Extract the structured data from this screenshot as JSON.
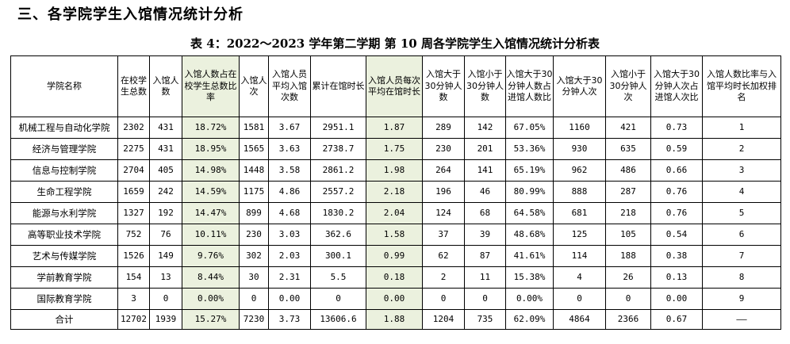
{
  "section_title": "三、各学院学生入馆情况统计分析",
  "table_caption": "表 4：2022～2023 学年第二学期 第 10 周各学院学生入馆情况统计分析表",
  "headers": [
    "学院名称",
    "在校学生总数",
    "入馆人数",
    "入馆人数占在校学生总数比率",
    "入馆人次",
    "入馆人员平均入馆次数",
    "累计在馆时长",
    "入馆人员每次平均在馆时长",
    "入馆大于30分钟人数",
    "入馆小于30分钟人数",
    "入馆大于30分钟人数占进馆人数比",
    "入馆大于30分钟人次",
    "入馆小于30分钟人次",
    "入馆大于30分钟人次占进馆人次比",
    "入馆人数比率与入馆平均时长加权排名"
  ],
  "rows": [
    [
      "机械工程与自动化学院",
      "2302",
      "431",
      "18.72%",
      "1581",
      "3.67",
      "2951.1",
      "1.87",
      "289",
      "142",
      "67.05%",
      "1160",
      "421",
      "0.73",
      "1"
    ],
    [
      "经济与管理学院",
      "2275",
      "431",
      "18.95%",
      "1565",
      "3.63",
      "2738.7",
      "1.75",
      "230",
      "201",
      "53.36%",
      "930",
      "635",
      "0.59",
      "2"
    ],
    [
      "信息与控制学院",
      "2704",
      "405",
      "14.98%",
      "1448",
      "3.58",
      "2861.2",
      "1.98",
      "264",
      "141",
      "65.19%",
      "962",
      "486",
      "0.66",
      "3"
    ],
    [
      "生命工程学院",
      "1659",
      "242",
      "14.59%",
      "1175",
      "4.86",
      "2557.2",
      "2.18",
      "196",
      "46",
      "80.99%",
      "888",
      "287",
      "0.76",
      "4"
    ],
    [
      "能源与水利学院",
      "1327",
      "192",
      "14.47%",
      "899",
      "4.68",
      "1830.2",
      "2.04",
      "124",
      "68",
      "64.58%",
      "681",
      "218",
      "0.76",
      "5"
    ],
    [
      "高等职业技术学院",
      "752",
      "76",
      "10.11%",
      "230",
      "3.03",
      "362.6",
      "1.58",
      "37",
      "39",
      "48.68%",
      "125",
      "105",
      "0.54",
      "6"
    ],
    [
      "艺术与传媒学院",
      "1526",
      "149",
      "9.76%",
      "302",
      "2.03",
      "300.1",
      "0.99",
      "62",
      "87",
      "41.61%",
      "114",
      "188",
      "0.38",
      "7"
    ],
    [
      "学前教育学院",
      "154",
      "13",
      "8.44%",
      "30",
      "2.31",
      "5.5",
      "0.18",
      "2",
      "11",
      "15.38%",
      "4",
      "26",
      "0.13",
      "8"
    ],
    [
      "国际教育学院",
      "3",
      "0",
      "0.00%",
      "0",
      "0.00",
      "0",
      "0.00",
      "0",
      "0",
      "0.00%",
      "0",
      "0",
      "0.00",
      "9"
    ]
  ],
  "total_row": [
    "合计",
    "12702",
    "1939",
    "15.27%",
    "7230",
    "3.73",
    "13606.6",
    "1.88",
    "1204",
    "735",
    "62.09%",
    "4864",
    "2366",
    "0.67",
    "——"
  ],
  "highlight_color": "#ebf1de"
}
